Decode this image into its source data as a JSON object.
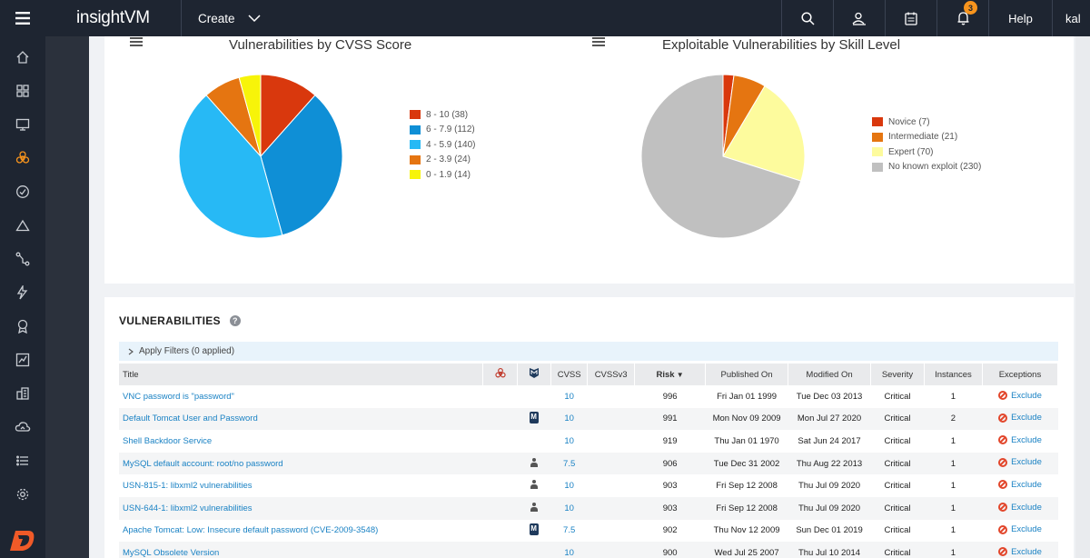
{
  "app": {
    "brand": "insightVM",
    "create_label": "Create",
    "help_label": "Help",
    "user_label": "kal",
    "notifications_count": "3"
  },
  "sidebar": {
    "items": [
      {
        "icon": "home-icon",
        "active": false
      },
      {
        "icon": "dashboard-icon",
        "active": false
      },
      {
        "icon": "assets-icon",
        "active": false
      },
      {
        "icon": "biohazard-icon",
        "active": true
      },
      {
        "icon": "check-circle-icon",
        "active": false
      },
      {
        "icon": "mountain-icon",
        "active": false
      },
      {
        "icon": "path-icon",
        "active": false
      },
      {
        "icon": "automation-icon",
        "active": false
      },
      {
        "icon": "award-icon",
        "active": false
      },
      {
        "icon": "reports-icon",
        "active": false
      },
      {
        "icon": "building-icon",
        "active": false
      },
      {
        "icon": "cloud-icon",
        "active": false
      },
      {
        "icon": "list-icon",
        "active": false
      },
      {
        "icon": "settings-icon",
        "active": false
      }
    ]
  },
  "charts": {
    "cvss": {
      "title": "Vulnerabilities by CVSS Score"
    },
    "skill": {
      "title": "Exploitable Vulnerabilities by Skill Level"
    }
  },
  "chart_data": [
    {
      "type": "pie",
      "title": "Vulnerabilities by CVSS Score",
      "categories": [
        "8 - 10 (38)",
        "6 - 7.9 (112)",
        "4 - 5.9 (140)",
        "2 - 3.9 (24)",
        "0 - 1.9 (14)"
      ],
      "values": [
        38,
        112,
        140,
        24,
        14
      ],
      "colors": [
        "#d9380d",
        "#0f8fd6",
        "#27b9f5",
        "#e57511",
        "#f7f409"
      ],
      "legend": "right"
    },
    {
      "type": "pie",
      "title": "Exploitable Vulnerabilities by Skill Level",
      "categories": [
        "Novice (7)",
        "Intermediate (21)",
        "Expert (70)",
        "No known exploit (230)"
      ],
      "values": [
        7,
        21,
        70,
        230
      ],
      "colors": [
        "#d9380d",
        "#e57511",
        "#fdfb9d",
        "#c0c0c0"
      ],
      "legend": "right"
    }
  ],
  "vulns": {
    "heading": "VULNERABILITIES",
    "help": "?",
    "filter_label": "Apply Filters (0 applied)",
    "columns": {
      "title": "Title",
      "cvss": "CVSS",
      "cvssv3": "CVSSv3",
      "risk": "Risk",
      "published": "Published On",
      "modified": "Modified On",
      "severity": "Severity",
      "instances": "Instances",
      "exceptions": "Exceptions"
    },
    "exclude_label": "Exclude",
    "rows": [
      {
        "title": "VNC password is \"password\"",
        "icon": "",
        "cvss": "10",
        "risk": "996",
        "published": "Fri Jan 01 1999",
        "modified": "Tue Dec 03 2013",
        "severity": "Critical",
        "instances": "1"
      },
      {
        "title": "Default Tomcat User and Password",
        "icon": "metasploit",
        "cvss": "10",
        "risk": "991",
        "published": "Mon Nov 09 2009",
        "modified": "Mon Jul 27 2020",
        "severity": "Critical",
        "instances": "2"
      },
      {
        "title": "Shell Backdoor Service",
        "icon": "",
        "cvss": "10",
        "risk": "919",
        "published": "Thu Jan 01 1970",
        "modified": "Sat Jun 24 2017",
        "severity": "Critical",
        "instances": "1"
      },
      {
        "title": "MySQL default account: root/no password",
        "icon": "exploit",
        "cvss": "7.5",
        "risk": "906",
        "published": "Tue Dec 31 2002",
        "modified": "Thu Aug 22 2013",
        "severity": "Critical",
        "instances": "1"
      },
      {
        "title": "USN-815-1: libxml2 vulnerabilities",
        "icon": "exploit",
        "cvss": "10",
        "risk": "903",
        "published": "Fri Sep 12 2008",
        "modified": "Thu Jul 09 2020",
        "severity": "Critical",
        "instances": "1"
      },
      {
        "title": "USN-644-1: libxml2 vulnerabilities",
        "icon": "exploit",
        "cvss": "10",
        "risk": "903",
        "published": "Fri Sep 12 2008",
        "modified": "Thu Jul 09 2020",
        "severity": "Critical",
        "instances": "1"
      },
      {
        "title": "Apache Tomcat: Low: Insecure default password (CVE-2009-3548)",
        "icon": "metasploit",
        "cvss": "7.5",
        "risk": "902",
        "published": "Thu Nov 12 2009",
        "modified": "Sun Dec 01 2019",
        "severity": "Critical",
        "instances": "1"
      },
      {
        "title": "MySQL Obsolete Version",
        "icon": "",
        "cvss": "10",
        "risk": "900",
        "published": "Wed Jul 25 2007",
        "modified": "Thu Jul 10 2014",
        "severity": "Critical",
        "instances": "1"
      }
    ]
  }
}
